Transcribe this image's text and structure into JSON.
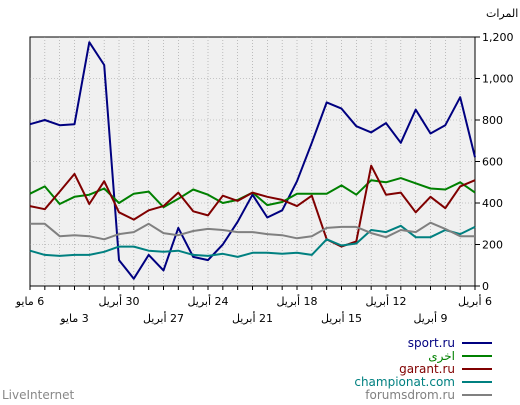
{
  "chart_data": {
    "type": "line",
    "unit_label": "المرات",
    "ylim": [
      0,
      1200
    ],
    "y_ticks": [
      {
        "value": 0,
        "label": "0"
      },
      {
        "value": 200,
        "label": "200"
      },
      {
        "value": 400,
        "label": "400"
      },
      {
        "value": 600,
        "label": "600"
      },
      {
        "value": 800,
        "label": "800"
      },
      {
        "value": 1000,
        "label": "1,000"
      },
      {
        "value": 1200,
        "label": "1,200"
      }
    ],
    "x_dates_newest_first": [
      "6 مايو",
      "5 مايو",
      "4 مايو",
      "3 مايو",
      "2 مايو",
      "1 مايو",
      "30 أبريل",
      "29 أبريل",
      "28 أبريل",
      "27 أبريل",
      "26 أبريل",
      "25 أبريل",
      "24 أبريل",
      "23 أبريل",
      "22 أبريل",
      "21 أبريل",
      "20 أبريل",
      "19 أبريل",
      "18 أبريل",
      "17 أبريل",
      "16 أبريل",
      "15 أبريل",
      "14 أبريل",
      "13 أبريل",
      "12 أبريل",
      "11 أبريل",
      "10 أبريل",
      "9 أبريل",
      "8 أبريل",
      "7 أبريل",
      "6 أبريل"
    ],
    "x_ticks_row1": [
      {
        "date": "6 مايو",
        "label": "6 مايو"
      },
      {
        "date": "30 أبريل",
        "label": "30 أبريل"
      },
      {
        "date": "24 أبريل",
        "label": "24 أبريل"
      },
      {
        "date": "18 أبريل",
        "label": "18 أبريل"
      },
      {
        "date": "12 أبريل",
        "label": "12 أبريل"
      },
      {
        "date": "6 أبريل",
        "label": "6 أبريل"
      }
    ],
    "x_ticks_row2": [
      {
        "date": "3 مايو",
        "label": "3 مايو"
      },
      {
        "date": "27 أبريل",
        "label": "27 أبريل"
      },
      {
        "date": "21 أبريل",
        "label": "21 أبريل"
      },
      {
        "date": "15 أبريل",
        "label": "15 أبريل"
      },
      {
        "date": "9 أبريل",
        "label": "9 أبريل"
      }
    ],
    "grid": true,
    "legend_position": "bottom-right",
    "series": [
      {
        "name": "sport.ru",
        "color": "#000080",
        "values": [
          780,
          800,
          775,
          780,
          1175,
          1065,
          125,
          35,
          150,
          75,
          280,
          140,
          125,
          200,
          310,
          440,
          330,
          365,
          505,
          690,
          885,
          855,
          770,
          740,
          785,
          690,
          850,
          735,
          775,
          910,
          620
        ]
      },
      {
        "name": "اخرى",
        "color": "#008000",
        "values": [
          445,
          480,
          395,
          430,
          440,
          470,
          400,
          445,
          455,
          380,
          420,
          465,
          440,
          400,
          415,
          450,
          390,
          405,
          445,
          445,
          445,
          485,
          440,
          510,
          500,
          520,
          495,
          470,
          465,
          500,
          450
        ]
      },
      {
        "name": "garant.ru",
        "color": "#800000",
        "values": [
          385,
          370,
          455,
          540,
          395,
          505,
          355,
          320,
          365,
          385,
          450,
          360,
          340,
          435,
          410,
          450,
          430,
          415,
          385,
          435,
          225,
          190,
          215,
          580,
          440,
          450,
          355,
          430,
          375,
          480,
          510
        ]
      },
      {
        "name": "championat.com",
        "color": "#008080",
        "values": [
          170,
          150,
          145,
          150,
          150,
          165,
          190,
          190,
          170,
          165,
          170,
          150,
          145,
          155,
          140,
          160,
          160,
          155,
          160,
          150,
          225,
          195,
          205,
          270,
          260,
          290,
          235,
          235,
          270,
          250,
          285
        ]
      },
      {
        "name": "forumsdrom.ru",
        "color": "#808080",
        "values": [
          300,
          300,
          240,
          245,
          240,
          225,
          250,
          260,
          300,
          255,
          245,
          265,
          275,
          270,
          260,
          260,
          250,
          245,
          230,
          240,
          280,
          285,
          285,
          255,
          235,
          270,
          260,
          305,
          275,
          240,
          240
        ]
      }
    ]
  },
  "footer": {
    "brand": "LiveInternet"
  }
}
